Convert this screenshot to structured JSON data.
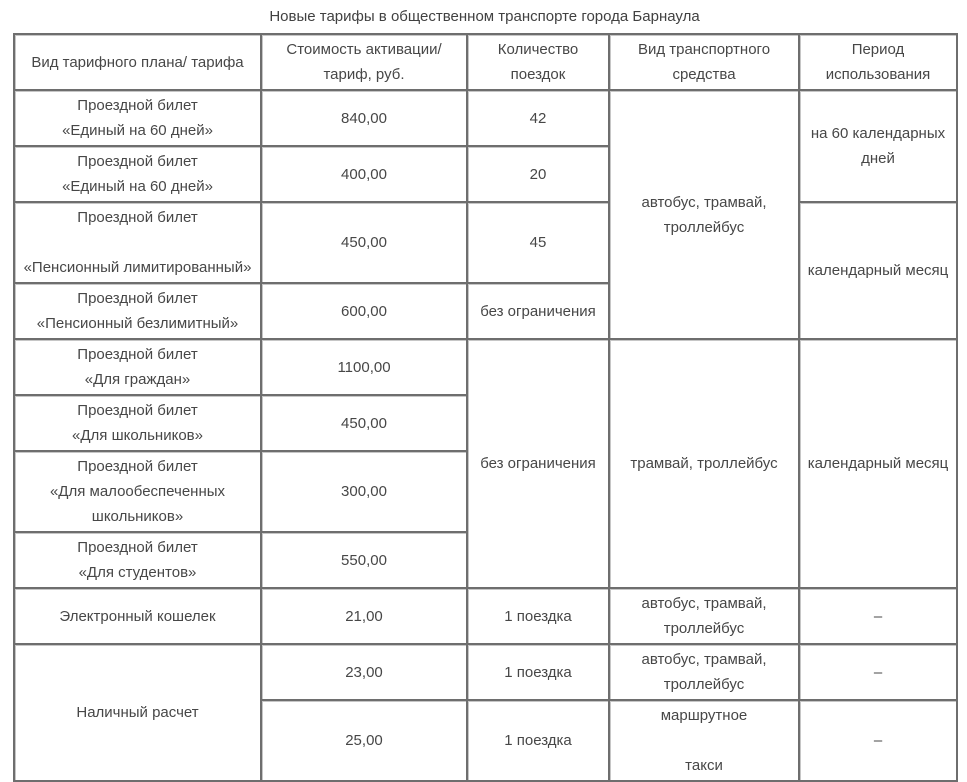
{
  "title": "Новые тарифы в общественном транспорте города Барнаула",
  "colors": {
    "text": "#474747",
    "border_inner": "#6e6e6e",
    "border_outer": "#2d2d2d",
    "background": "#ffffff"
  },
  "table": {
    "headers": [
      "Вид тарифного плана/ тарифа",
      "Стоимость активации/\nтариф, руб.",
      "Количество\nпоездок",
      "Вид транспортного\nсредства",
      "Период\nиспользования"
    ],
    "rows": [
      {
        "cells": [
          {
            "text": "Проездной билет\n«Единый на 60 дней»"
          },
          {
            "text": "840,00"
          },
          {
            "text": "42"
          },
          {
            "text": "автобус, трамвай,\nтроллейбус",
            "rowspan": 4
          },
          {
            "text": "на 60 календарных\nдней",
            "rowspan": 2
          }
        ]
      },
      {
        "cells": [
          {
            "text": "Проездной билет\n«Единый на 60 дней»"
          },
          {
            "text": "400,00"
          },
          {
            "text": "20"
          }
        ]
      },
      {
        "cells": [
          {
            "text": "Проездной билет\n\n«Пенсионный лимитированный»"
          },
          {
            "text": "450,00"
          },
          {
            "text": "45"
          },
          {
            "text": "календарный месяц",
            "rowspan": 2
          }
        ]
      },
      {
        "cells": [
          {
            "text": "Проездной билет\n«Пенсионный безлимитный»"
          },
          {
            "text": "600,00"
          },
          {
            "text": "без ограничения"
          }
        ]
      },
      {
        "cells": [
          {
            "text": "Проездной билет\n«Для граждан»"
          },
          {
            "text": "1100,00"
          },
          {
            "text": "без ограничения",
            "rowspan": 4
          },
          {
            "text": "трамвай, троллейбус",
            "rowspan": 4
          },
          {
            "text": "календарный месяц",
            "rowspan": 4
          }
        ]
      },
      {
        "cells": [
          {
            "text": "Проездной билет\n«Для школьников»"
          },
          {
            "text": "450,00"
          }
        ]
      },
      {
        "cells": [
          {
            "text": "Проездной билет\n«Для малообеспеченных\nшкольников»"
          },
          {
            "text": "300,00"
          }
        ]
      },
      {
        "cells": [
          {
            "text": "Проездной билет\n«Для студентов»"
          },
          {
            "text": "550,00"
          }
        ]
      },
      {
        "cells": [
          {
            "text": "Электронный кошелек"
          },
          {
            "text": "21,00"
          },
          {
            "text": "1 поездка"
          },
          {
            "text": "автобус, трамвай,\nтроллейбус"
          },
          {
            "text": "–"
          }
        ]
      },
      {
        "cells": [
          {
            "text": "Наличный расчет",
            "rowspan": 2
          },
          {
            "text": "23,00"
          },
          {
            "text": "1 поездка"
          },
          {
            "text": "автобус, трамвай,\nтроллейбус"
          },
          {
            "text": "–"
          }
        ]
      },
      {
        "cells": [
          {
            "text": "25,00"
          },
          {
            "text": "1 поездка"
          },
          {
            "text": "маршрутное\n\nтакси"
          },
          {
            "text": "–"
          }
        ]
      }
    ]
  }
}
